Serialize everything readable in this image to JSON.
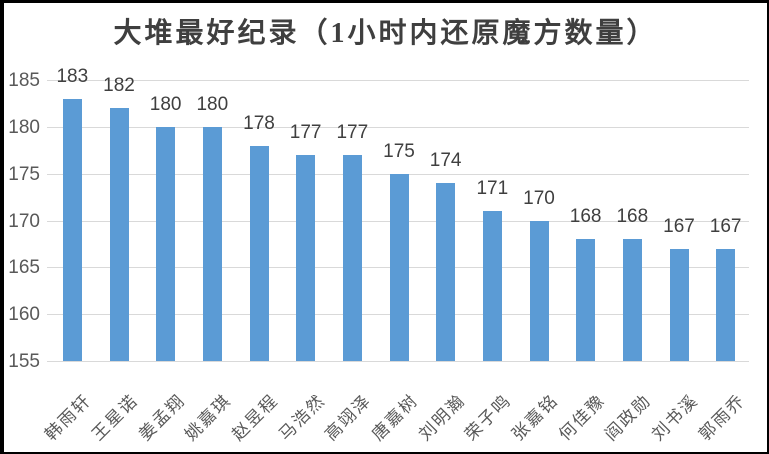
{
  "chart_data": {
    "type": "bar",
    "title": "大堆最好纪录（1小时内还原魔方数量）",
    "categories": [
      "韩雨轩",
      "王星诺",
      "姜孟翔",
      "姚嘉琪",
      "赵昱程",
      "马浩然",
      "高翊泽",
      "唐嘉树",
      "刘明瀚",
      "荣子鸣",
      "张嘉铭",
      "何佳豫",
      "阎政勋",
      "刘书溪",
      "郭雨乔"
    ],
    "values": [
      183,
      182,
      180,
      180,
      178,
      177,
      177,
      175,
      174,
      171,
      170,
      168,
      168,
      167,
      167
    ],
    "xlabel": "",
    "ylabel": "",
    "ylim": [
      155,
      185
    ],
    "ytick_step": 5,
    "yticks": [
      185,
      180,
      175,
      170,
      165,
      160,
      155
    ],
    "grid": true,
    "legend": false
  },
  "colors": {
    "bar": "#5B9BD5",
    "gridline": "#D9D9D9",
    "title_text": "#3F3F3F",
    "tick_text": "#595959",
    "value_text": "#3F3F3F",
    "category_text": "#595959",
    "frame_border": "#000000",
    "background": "#FFFFFF"
  }
}
